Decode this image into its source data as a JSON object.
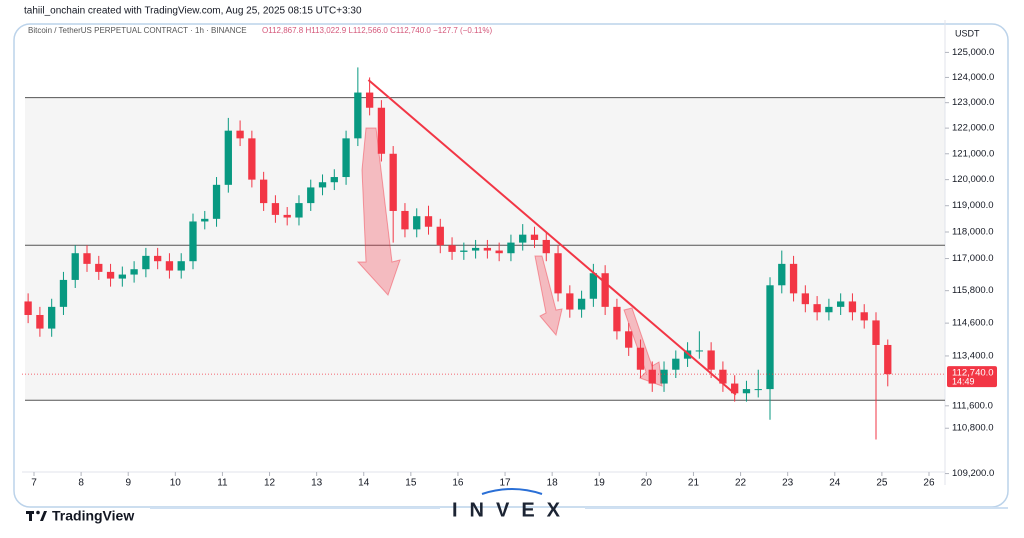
{
  "chart_data": {
    "type": "candlestick",
    "title": "tahiil_onchain created with TradingView.com, Aug 25, 2025 08:15 UTC+3:30",
    "symbol": "Bitcoin / TetherUS PERPETUAL CONTRACT · 1h · BINANCE",
    "ohlc": "O112,867.8 H113,022.9 L112,566.0 C112,740.0 −127.7 (−0.11%)",
    "unit": "USDT",
    "brand": "TradingView",
    "watermark": "INVEX",
    "log_scale": true,
    "grid": false,
    "up_color": "#089981",
    "down_color": "#f23645",
    "xlim": [
      6.745,
      26.34
    ],
    "xticks": [
      7,
      8,
      9,
      10,
      11,
      12,
      13,
      14,
      15,
      16,
      17,
      18,
      19,
      20,
      21,
      22,
      23,
      24,
      25,
      26
    ],
    "ylim": [
      108800,
      125700
    ],
    "yticks": [
      {
        "value": 125000,
        "label": "125,000.0"
      },
      {
        "value": 124000,
        "label": "124,000.0"
      },
      {
        "value": 123000,
        "label": "123,000.0"
      },
      {
        "value": 122000,
        "label": "122,000.0"
      },
      {
        "value": 121000,
        "label": "121,000.0"
      },
      {
        "value": 120000,
        "label": "120,000.0"
      },
      {
        "value": 119000,
        "label": "119,000.0"
      },
      {
        "value": 118000,
        "label": "118,000.0"
      },
      {
        "value": 117000,
        "label": "117,000.0"
      },
      {
        "value": 115800,
        "label": "115,800.0"
      },
      {
        "value": 114600,
        "label": "114,600.0"
      },
      {
        "value": 113400,
        "label": "113,400.0"
      },
      {
        "value": 111600,
        "label": "111,600.0"
      },
      {
        "value": 110800,
        "label": "110,800.0"
      },
      {
        "value": 109200,
        "label": "109,200.0"
      }
    ],
    "levels": [
      123200,
      117500,
      111800
    ],
    "trendline": {
      "x": [
        14.1,
        21.9
      ],
      "y": [
        123900,
        112000
      ],
      "color": "#f23645"
    },
    "last_price": {
      "value": 112740,
      "label": "112,740.0"
    },
    "countdown": "14:49",
    "x": [
      6.875,
      7.125,
      7.375,
      7.625,
      7.875,
      8.125,
      8.375,
      8.625,
      8.875,
      9.125,
      9.375,
      9.625,
      9.875,
      10.125,
      10.375,
      10.625,
      10.875,
      11.125,
      11.375,
      11.625,
      11.875,
      12.125,
      12.375,
      12.625,
      12.875,
      13.125,
      13.375,
      13.625,
      13.875,
      14.125,
      14.375,
      14.625,
      14.875,
      15.125,
      15.375,
      15.625,
      15.875,
      16.125,
      16.375,
      16.625,
      16.875,
      17.125,
      17.375,
      17.625,
      17.875,
      18.125,
      18.375,
      18.625,
      18.875,
      19.125,
      19.375,
      19.625,
      19.875,
      20.125,
      20.375,
      20.625,
      20.875,
      21.125,
      21.375,
      21.625,
      21.875,
      22.125,
      22.375,
      22.625,
      22.875,
      23.125,
      23.375,
      23.625,
      23.875,
      24.125,
      24.375,
      24.625,
      24.875,
      25.125
    ],
    "open": [
      115400,
      114900,
      114400,
      115200,
      116200,
      117200,
      116800,
      116500,
      116250,
      116400,
      116600,
      117100,
      116900,
      116550,
      116900,
      118400,
      118500,
      119800,
      121900,
      121600,
      120000,
      119100,
      118650,
      118550,
      119100,
      119700,
      119900,
      120100,
      121600,
      123400,
      122800,
      121000,
      118800,
      118100,
      118600,
      118200,
      117500,
      117250,
      117300,
      117400,
      117300,
      117200,
      117600,
      117900,
      117700,
      117200,
      115700,
      115100,
      115500,
      116450,
      115200,
      114300,
      113700,
      112900,
      112400,
      112900,
      113300,
      113600,
      113600,
      112900,
      112400,
      112050,
      112200,
      112200,
      116000,
      116800,
      115700,
      115300,
      115000,
      115200,
      115400,
      115000,
      114700,
      113800
    ],
    "high": [
      115700,
      115200,
      115500,
      116500,
      117500,
      117500,
      117100,
      116800,
      116700,
      116900,
      117400,
      117400,
      117200,
      117200,
      118700,
      118800,
      120100,
      122400,
      122300,
      121900,
      120300,
      119400,
      118950,
      119400,
      120000,
      120200,
      120400,
      121900,
      124400,
      124000,
      123100,
      121300,
      119100,
      118900,
      119000,
      118500,
      117800,
      117600,
      117700,
      117700,
      117600,
      117900,
      118300,
      118200,
      118000,
      117500,
      116000,
      115800,
      116800,
      116750,
      115500,
      114600,
      114000,
      113200,
      113200,
      113600,
      113900,
      114300,
      113900,
      113200,
      112700,
      112500,
      112900,
      116300,
      117300,
      117100,
      116000,
      115600,
      115500,
      115700,
      115700,
      115300,
      115000,
      114000
    ],
    "low": [
      114600,
      114100,
      114100,
      114900,
      115900,
      116500,
      116200,
      115950,
      115950,
      116100,
      116300,
      116600,
      116250,
      116250,
      116600,
      118100,
      118200,
      119500,
      121300,
      119700,
      118800,
      118350,
      118250,
      118250,
      118800,
      119400,
      119600,
      119800,
      121300,
      122500,
      120700,
      117600,
      117800,
      117800,
      117900,
      117200,
      116950,
      116950,
      117000,
      117000,
      116900,
      116900,
      117300,
      117400,
      116900,
      115400,
      114800,
      114800,
      115200,
      114900,
      114000,
      113400,
      112600,
      112100,
      112100,
      112600,
      113000,
      113300,
      112600,
      112100,
      111750,
      111750,
      111900,
      111100,
      115700,
      115400,
      115000,
      114700,
      114700,
      114900,
      114700,
      114400,
      110400,
      112300
    ],
    "close": [
      114900,
      114400,
      115200,
      116200,
      117200,
      116800,
      116500,
      116250,
      116400,
      116600,
      117100,
      116900,
      116550,
      116900,
      118400,
      118500,
      119800,
      121900,
      121600,
      120000,
      119100,
      118650,
      118550,
      119100,
      119700,
      119900,
      120100,
      121600,
      123400,
      122800,
      121000,
      118800,
      118100,
      118600,
      118200,
      117500,
      117250,
      117300,
      117400,
      117300,
      117200,
      117600,
      117900,
      117700,
      117200,
      115700,
      115100,
      115500,
      116450,
      115200,
      114300,
      113700,
      112900,
      112400,
      112900,
      113300,
      113600,
      113600,
      112900,
      112400,
      112050,
      112200,
      112200,
      116000,
      116800,
      115700,
      115300,
      115000,
      115200,
      115400,
      115000,
      114700,
      113800,
      112740
    ]
  }
}
